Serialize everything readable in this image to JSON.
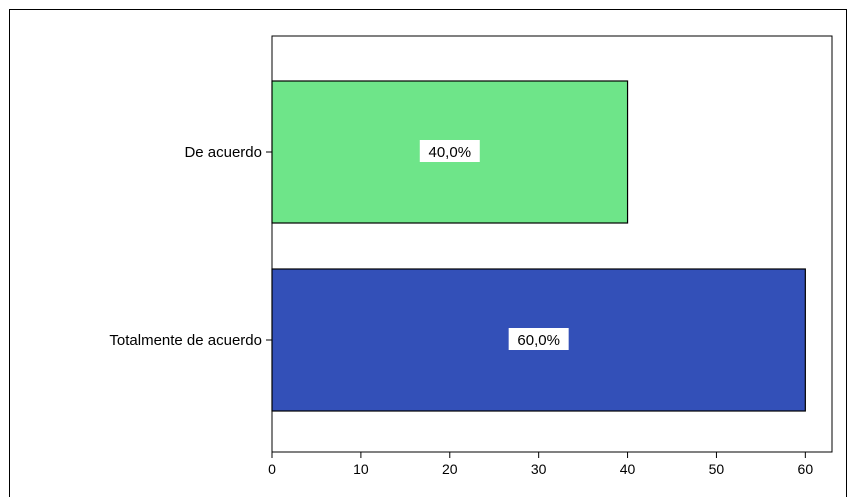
{
  "chart_data": {
    "type": "bar",
    "orientation": "horizontal",
    "categories": [
      "De acuerdo",
      "Totalmente de acuerdo"
    ],
    "values": [
      40,
      60
    ],
    "data_labels": [
      "40,0%",
      "60,0%"
    ],
    "colors": [
      "#6ee589",
      "#3350b8"
    ],
    "xlim": [
      0,
      63
    ],
    "x_ticks": [
      "0",
      "10",
      "20",
      "30",
      "40",
      "50",
      "60"
    ],
    "grid": false,
    "title": "",
    "xlabel": "",
    "ylabel": ""
  }
}
